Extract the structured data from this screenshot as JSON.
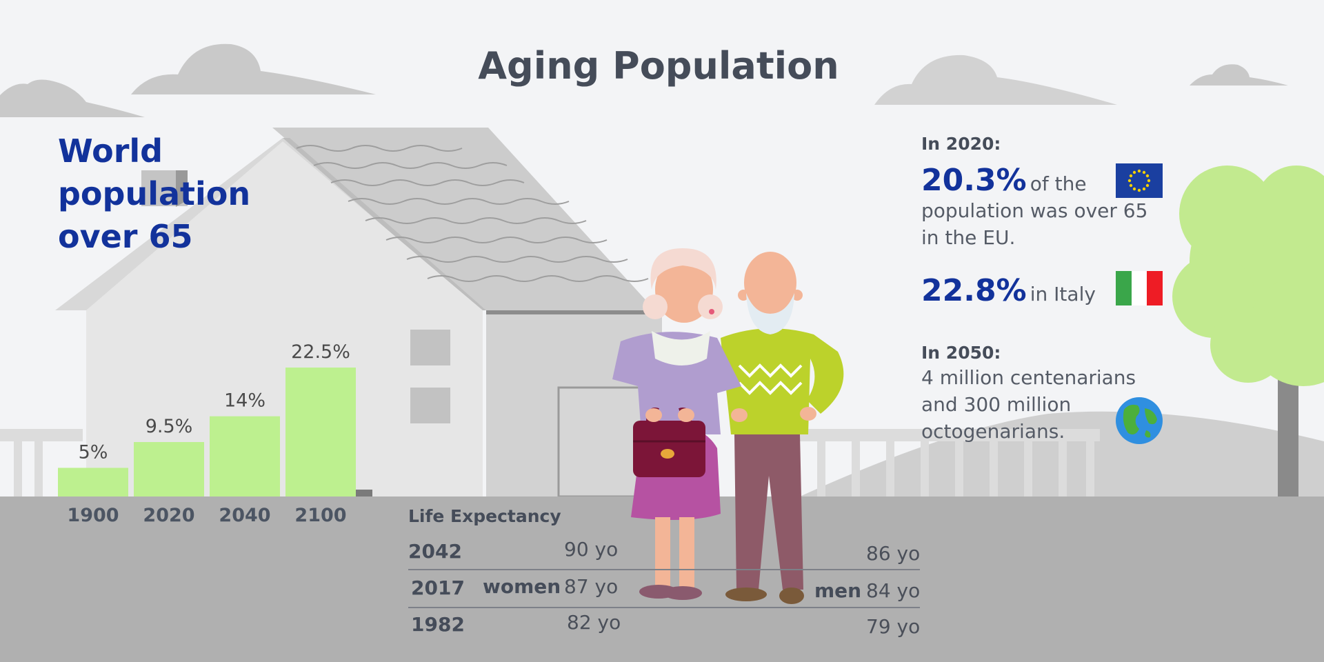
{
  "title": "Aging Population",
  "heading": {
    "line1": "World",
    "line2": "population",
    "line3": "over 65"
  },
  "chart_data": {
    "type": "bar",
    "title": "World population over 65",
    "categories": [
      "1900",
      "2020",
      "2040",
      "2100"
    ],
    "values": [
      5,
      9.5,
      14,
      22.5
    ],
    "value_labels": [
      "5%",
      "9.5%",
      "14%",
      "22.5%"
    ],
    "unit": "%",
    "ylim": [
      0,
      22.5
    ],
    "bar_color": "#bdf08f",
    "grid": false,
    "legend": "none"
  },
  "facts": {
    "in2020_label": "In 2020:",
    "eu_value": "20.3%",
    "eu_text1": "of the",
    "eu_text2": "population was over 65",
    "eu_text3": "in the EU.",
    "eu_flag_icon": "eu-flag-icon",
    "italy_value": "22.8%",
    "italy_text": "in Italy",
    "italy_flag_icon": "italy-flag-icon",
    "in2050_label": "In 2050:",
    "text2050_1": "4 million centenarians",
    "text2050_2": "and 300 million",
    "text2050_3": "octogenarians.",
    "globe_icon": "globe-icon"
  },
  "life_expectancy": {
    "title": "Life Expectancy",
    "women_label": "women",
    "men_label": "men",
    "rows": [
      {
        "year": "2042",
        "women": "90 yo",
        "men": "86 yo"
      },
      {
        "year": "2017",
        "women": "87 yo",
        "men": "84 yo"
      },
      {
        "year": "1982",
        "women": "82 yo",
        "men": "79 yo"
      }
    ]
  },
  "colors": {
    "brand_blue": "#12329b",
    "bar_green": "#bdf08f",
    "ground": "#b0b0b0",
    "sky": "#f3f4f6"
  }
}
